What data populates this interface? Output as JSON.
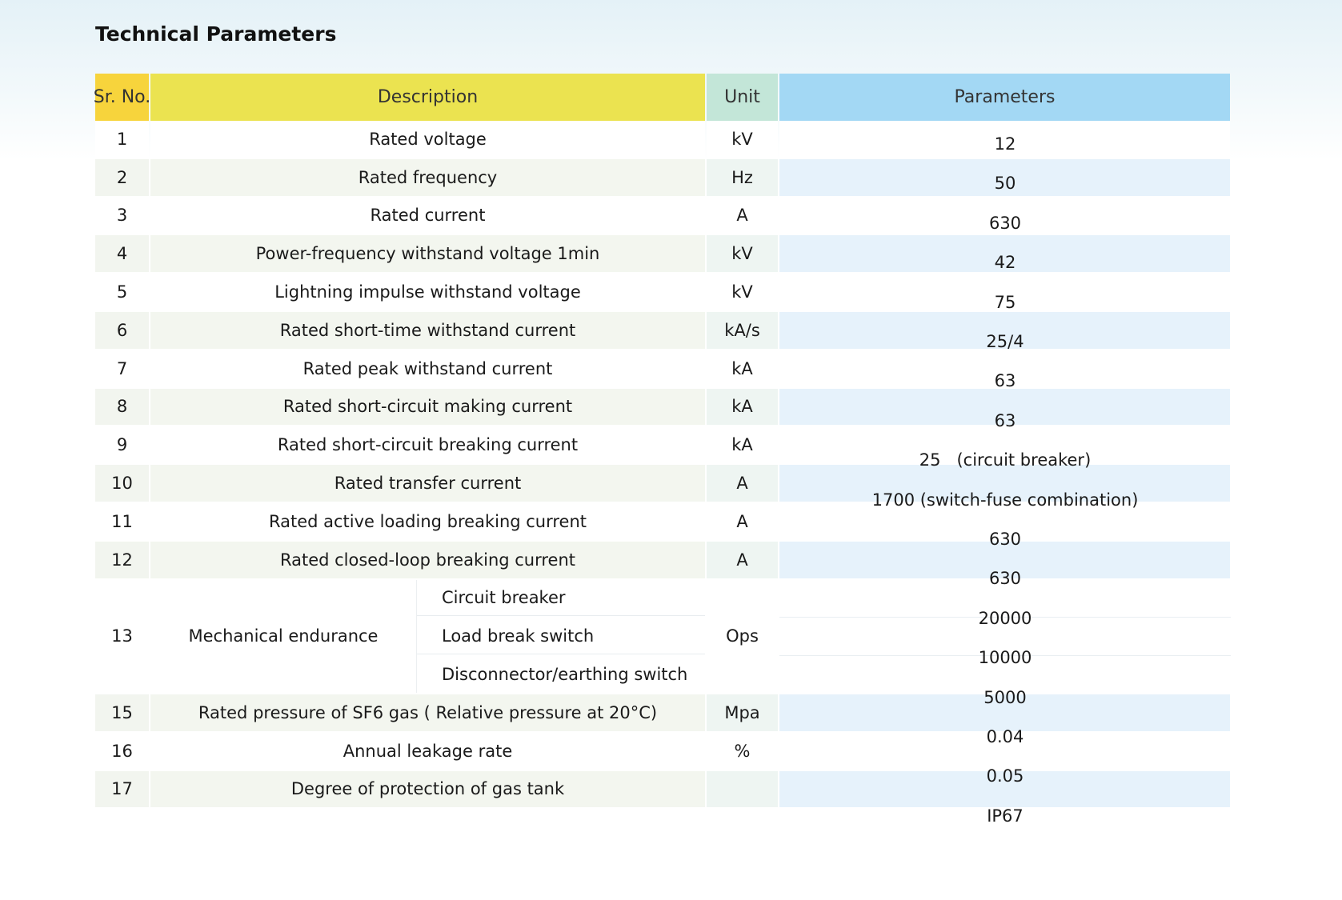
{
  "header": {
    "title": "Technical Parameters",
    "columns": [
      "Sr. No.",
      "Description",
      "Unit",
      "Parameters"
    ]
  },
  "table": {
    "rows": [
      {
        "no": "1",
        "description": "Rated voltage",
        "unit": "kV"
      },
      {
        "no": "2",
        "description": "Rated frequency",
        "unit": "Hz"
      },
      {
        "no": "3",
        "description": "Rated current",
        "unit": "A"
      },
      {
        "no": "4",
        "description": "Power-frequency withstand voltage 1min",
        "unit": "kV"
      },
      {
        "no": "5",
        "description": "Lightning impulse withstand voltage",
        "unit": "kV"
      },
      {
        "no": "6",
        "description": "Rated short-time withstand current",
        "unit": "kA/s"
      },
      {
        "no": "7",
        "description": "Rated peak withstand current",
        "unit": "kA"
      },
      {
        "no": "8",
        "description": "Rated short-circuit making current",
        "unit": "kA"
      },
      {
        "no": "9",
        "description": "Rated short-circuit breaking current",
        "unit": "kA"
      },
      {
        "no": "10",
        "description": "Rated transfer current",
        "unit": "A"
      },
      {
        "no": "11",
        "description": "Rated active loading breaking current",
        "unit": "A"
      },
      {
        "no": "12",
        "description": "Rated closed-loop breaking current",
        "unit": "A"
      },
      {
        "no": "13",
        "description": "Mechanical endurance",
        "items": [
          "Circuit breaker",
          "Load break switch",
          "Disconnector/earthing switch"
        ],
        "unit": "Ops"
      },
      {
        "no": "15",
        "description": "Rated pressure of SF6 gas ( Relative pressure at 20°C)",
        "unit": "Mpa"
      },
      {
        "no": "16",
        "description": "Annual leakage rate",
        "unit": "%"
      },
      {
        "no": "17",
        "description": "Degree of protection of gas tank"
      }
    ],
    "parameters": [
      "12",
      "50",
      "630",
      "42",
      "75",
      "25/4",
      "63",
      "63",
      "25   (circuit breaker)",
      "1700 (switch-fuse combination)",
      "630",
      "630",
      "20000",
      "10000",
      "5000",
      "0.04",
      "0.05",
      "IP67"
    ]
  }
}
